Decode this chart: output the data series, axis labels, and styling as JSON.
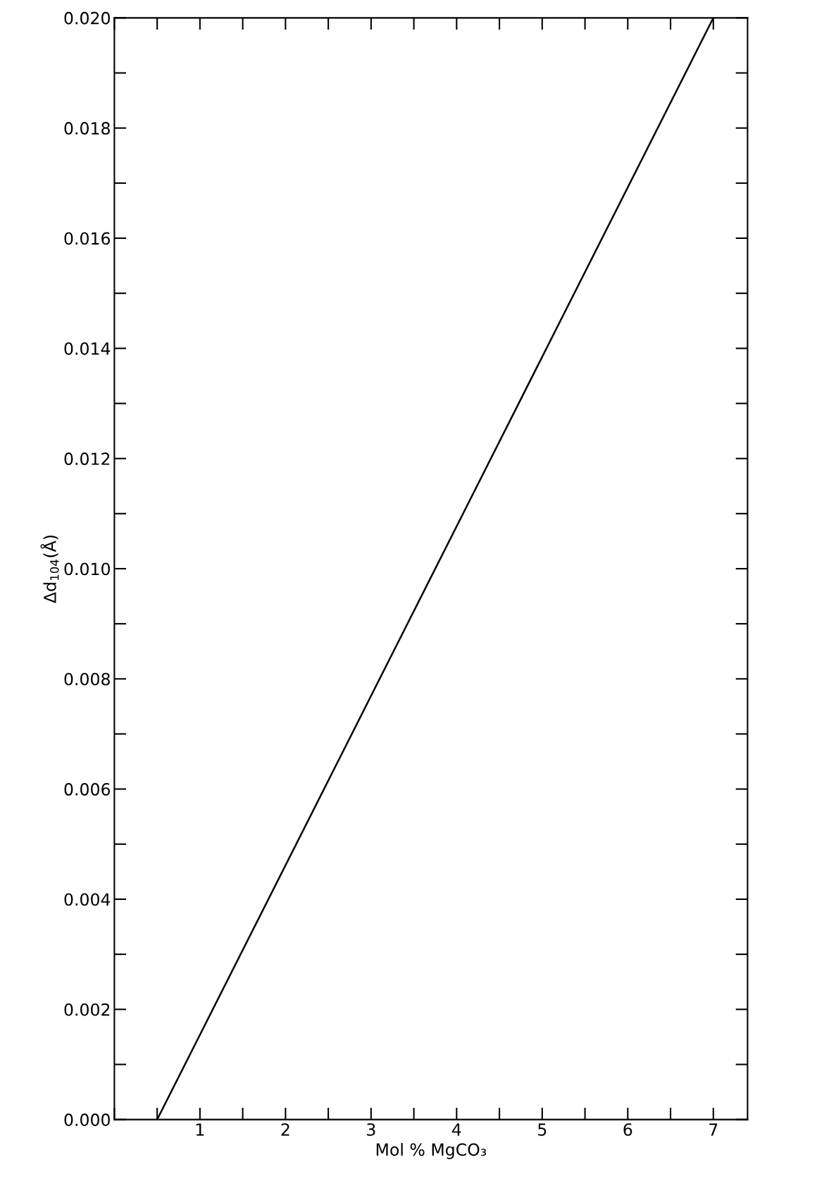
{
  "chart_data": {
    "type": "line",
    "xlabel": "Mol % MgCO₃",
    "ylabel": "Δd$_{104}$(Å)",
    "series": [
      {
        "color": "#000000",
        "x": [
          0.5,
          7.0
        ],
        "values": [
          0.0,
          0.02
        ]
      }
    ],
    "xlim": [
      0,
      7.4
    ],
    "ylim": [
      0,
      0.02
    ],
    "xticks": [
      1,
      2,
      3,
      4,
      5,
      6,
      7
    ],
    "yticks": [
      {
        "value": 0.0,
        "label": "0.000"
      },
      {
        "value": 0.002,
        "label": "0.002"
      },
      {
        "value": 0.004,
        "label": "0.004"
      },
      {
        "value": 0.006,
        "label": "0.006"
      },
      {
        "value": 0.008,
        "label": "0.008"
      },
      {
        "value": 0.01,
        "label": "0.010"
      },
      {
        "value": 0.012,
        "label": "0.012"
      },
      {
        "value": 0.014,
        "label": "0.014"
      },
      {
        "value": 0.016,
        "label": "0.016"
      },
      {
        "value": 0.018,
        "label": "0.018"
      },
      {
        "value": 0.02,
        "label": "0.020"
      }
    ],
    "grid": false,
    "marker": "none",
    "line_style": "solid"
  }
}
